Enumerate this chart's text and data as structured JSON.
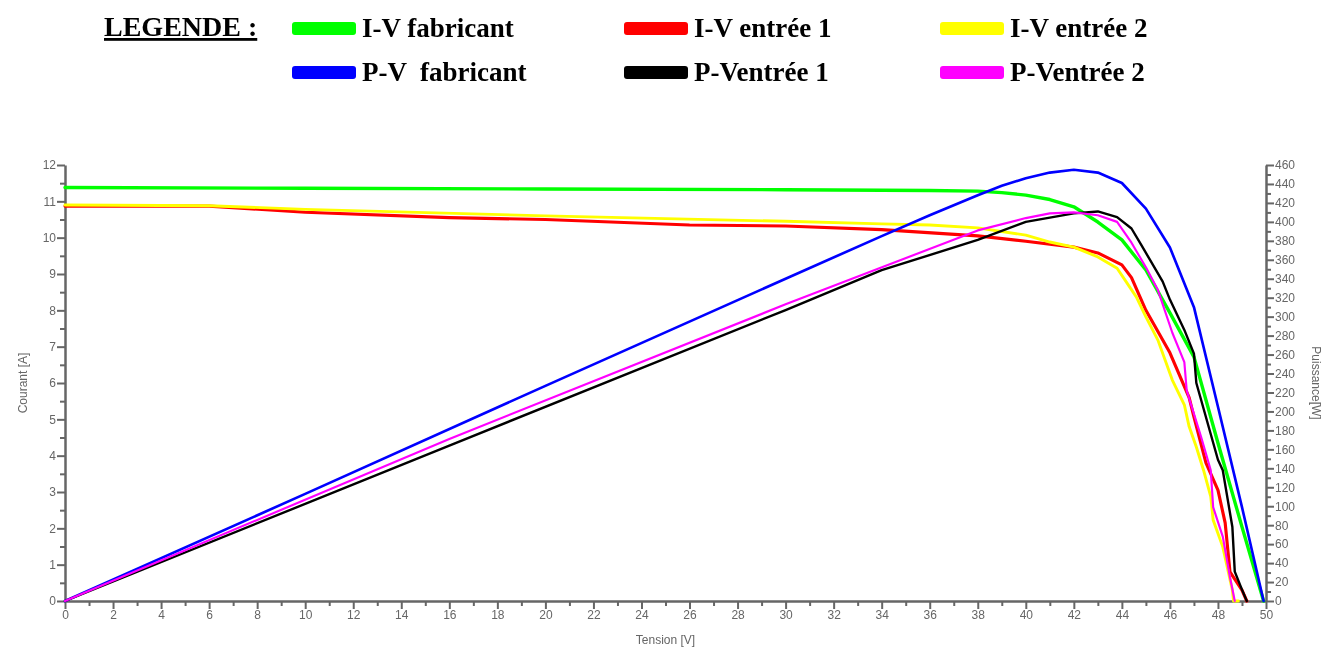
{
  "chart_data": {
    "type": "line",
    "xlabel": "Tension [V]",
    "ylabel": "Courant [A]",
    "y2label": "Puissance[W]",
    "legend_title": "LEGENDE :",
    "legend": "top",
    "grid": false,
    "marker": "none",
    "line_style": "solid",
    "xlim": [
      0,
      50
    ],
    "ylim": [
      0,
      12
    ],
    "y2lim": [
      0,
      460
    ],
    "xticks": [
      0,
      {
        "value": 1,
        "label": null
      },
      2,
      {
        "value": 3,
        "label": null
      },
      4,
      {
        "value": 5,
        "label": null
      },
      6,
      {
        "value": 7,
        "label": null
      },
      8,
      {
        "value": 9,
        "label": null
      },
      10,
      {
        "value": 11,
        "label": null
      },
      12,
      {
        "value": 13,
        "label": null
      },
      14,
      {
        "value": 15,
        "label": null
      },
      16,
      {
        "value": 17,
        "label": null
      },
      18,
      {
        "value": 19,
        "label": null
      },
      20,
      {
        "value": 21,
        "label": null
      },
      22,
      {
        "value": 23,
        "label": null
      },
      24,
      {
        "value": 25,
        "label": null
      },
      26,
      {
        "value": 27,
        "label": null
      },
      28,
      {
        "value": 29,
        "label": null
      },
      30,
      {
        "value": 31,
        "label": null
      },
      32,
      {
        "value": 33,
        "label": null
      },
      34,
      {
        "value": 35,
        "label": null
      },
      36,
      {
        "value": 37,
        "label": null
      },
      38,
      {
        "value": 39,
        "label": null
      },
      40,
      {
        "value": 41,
        "label": null
      },
      42,
      {
        "value": 43,
        "label": null
      },
      44,
      {
        "value": 45,
        "label": null
      },
      46,
      {
        "value": 47,
        "label": null
      },
      48,
      {
        "value": 49,
        "label": null
      },
      50
    ],
    "yticks": [
      0,
      {
        "value": 0.5,
        "label": null
      },
      1,
      {
        "value": 1.5,
        "label": null
      },
      2,
      {
        "value": 2.5,
        "label": null
      },
      3,
      {
        "value": 3.5,
        "label": null
      },
      4,
      {
        "value": 4.5,
        "label": null
      },
      5,
      {
        "value": 5.5,
        "label": null
      },
      6,
      {
        "value": 6.5,
        "label": null
      },
      7,
      {
        "value": 7.5,
        "label": null
      },
      8,
      {
        "value": 8.5,
        "label": null
      },
      9,
      {
        "value": 9.5,
        "label": null
      },
      10,
      {
        "value": 10.5,
        "label": null
      },
      11,
      {
        "value": 11.5,
        "label": null
      },
      12
    ],
    "y2ticks": [
      0,
      {
        "value": 10,
        "label": null
      },
      20,
      {
        "value": 30,
        "label": null
      },
      40,
      {
        "value": 50,
        "label": null
      },
      60,
      {
        "value": 70,
        "label": null
      },
      80,
      {
        "value": 90,
        "label": null
      },
      100,
      {
        "value": 110,
        "label": null
      },
      120,
      {
        "value": 130,
        "label": null
      },
      140,
      {
        "value": 150,
        "label": null
      },
      160,
      {
        "value": 170,
        "label": null
      },
      180,
      {
        "value": 190,
        "label": null
      },
      200,
      {
        "value": 210,
        "label": null
      },
      220,
      {
        "value": 230,
        "label": null
      },
      240,
      {
        "value": 250,
        "label": null
      },
      260,
      {
        "value": 270,
        "label": null
      },
      280,
      {
        "value": 290,
        "label": null
      },
      300,
      {
        "value": 310,
        "label": null
      },
      320,
      {
        "value": 330,
        "label": null
      },
      340,
      {
        "value": 350,
        "label": null
      },
      360,
      {
        "value": 370,
        "label": null
      },
      380,
      {
        "value": 390,
        "label": null
      },
      400,
      {
        "value": 410,
        "label": null
      },
      420,
      {
        "value": 430,
        "label": null
      },
      440,
      {
        "value": 450,
        "label": null
      },
      460
    ],
    "series": [
      {
        "name": "I-V fabricant",
        "color": "#00ff00",
        "x": [
          0,
          10,
          20,
          30,
          36,
          38,
          39,
          40,
          41,
          42,
          43,
          44,
          45,
          46,
          47,
          48,
          49,
          49.9
        ],
        "values": [
          11.38,
          11.36,
          11.34,
          11.32,
          11.3,
          11.28,
          11.24,
          11.17,
          11.05,
          10.85,
          10.43,
          9.94,
          9.11,
          7.93,
          6.72,
          4.35,
          2.04,
          0
        ]
      },
      {
        "name": "I-V entrée 1",
        "color": "#ff0000",
        "x": [
          0,
          6,
          10,
          16,
          20,
          26,
          30,
          34,
          38,
          40,
          42,
          43,
          44,
          44.4,
          45,
          46,
          46.8,
          47,
          47.5,
          48,
          48.3,
          48.5,
          49,
          49.2
        ],
        "values": [
          10.87,
          10.87,
          10.7,
          10.55,
          10.5,
          10.35,
          10.32,
          10.22,
          10.05,
          9.9,
          9.74,
          9.58,
          9.25,
          8.9,
          8.0,
          6.83,
          5.6,
          5.07,
          3.8,
          3.05,
          2.15,
          0.8,
          0.3,
          0
        ]
      },
      {
        "name": "I-V entrée 2",
        "color": "#ffff00",
        "x": [
          0,
          6,
          10,
          20,
          30,
          34,
          36,
          38,
          40,
          41,
          42,
          43,
          43.8,
          44.6,
          45,
          45.5,
          46.1,
          46.6,
          46.8,
          47.1,
          47.4,
          47.7,
          47.8,
          48.2,
          48.6,
          48.65,
          48.85
        ],
        "values": [
          10.9,
          10.88,
          10.78,
          10.6,
          10.45,
          10.38,
          10.35,
          10.27,
          10.07,
          9.88,
          9.74,
          9.47,
          9.16,
          8.37,
          7.82,
          7.18,
          6.08,
          5.4,
          4.8,
          4.24,
          3.6,
          2.87,
          2.23,
          1.49,
          0.3,
          0,
          0
        ]
      },
      {
        "name": "P-V  fabricant",
        "color": "#0000ff",
        "axis": "y2",
        "x": [
          0,
          10,
          20,
          30,
          34,
          36,
          38,
          39,
          40,
          41,
          42,
          43,
          44,
          45,
          46,
          47,
          48,
          49,
          49.9
        ],
        "values": [
          0,
          113,
          227,
          340,
          385,
          407,
          428,
          438,
          446,
          452,
          455,
          452,
          441,
          414,
          373,
          310,
          205,
          99,
          0
        ]
      },
      {
        "name": "P-Ventrée 1",
        "color": "#000000",
        "axis": "y2",
        "x": [
          0,
          16,
          30,
          34,
          38,
          40,
          42,
          43,
          43.8,
          44.4,
          44.8,
          45.7,
          46,
          46.6,
          47,
          47.1,
          48,
          48.2,
          48.6,
          48.7,
          49,
          49.2
        ],
        "values": [
          0,
          164,
          307,
          349,
          381,
          400,
          409,
          411,
          405,
          393,
          376,
          337,
          318,
          286,
          261,
          230,
          149,
          138,
          78,
          31,
          12,
          0
        ]
      },
      {
        "name": "P-Ventrée 2",
        "color": "#ff00ff",
        "axis": "y2",
        "x": [
          0,
          16,
          30,
          38,
          40,
          41,
          42,
          43,
          43.8,
          44.4,
          45,
          45.5,
          46.1,
          46.6,
          46.7,
          47.3,
          47.7,
          47.8,
          48.2,
          48.5,
          48.7
        ],
        "values": [
          0,
          171,
          313,
          391,
          404,
          409,
          410,
          407,
          400,
          378,
          352,
          328,
          283,
          252,
          222,
          173,
          138,
          99,
          68,
          25,
          0
        ]
      }
    ]
  }
}
